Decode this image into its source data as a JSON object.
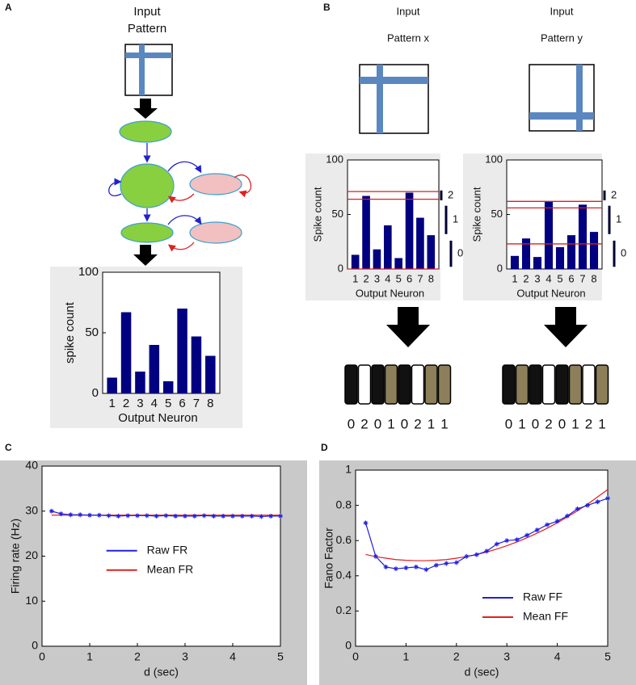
{
  "panels": [
    "A",
    "B",
    "C",
    "D"
  ],
  "diagram": {
    "a_input": [
      "Input",
      "Pattern"
    ],
    "x_input": [
      "Input",
      "Pattern x"
    ],
    "y_input": [
      "Input",
      "Pattern y"
    ],
    "code_x": [
      0,
      2,
      0,
      1,
      0,
      2,
      1,
      1
    ],
    "code_y": [
      0,
      1,
      0,
      2,
      0,
      1,
      2,
      1
    ],
    "code_colors": [
      "#111111",
      "#8c7f5a",
      "#ffffff"
    ]
  },
  "chart_data": [
    {
      "type": "bar",
      "y_label": "spike count",
      "x_label": "Output Neuron",
      "categories": [
        "1",
        "2",
        "3",
        "4",
        "5",
        "6",
        "7",
        "8"
      ],
      "values": [
        13,
        67,
        18,
        40,
        10,
        70,
        47,
        31
      ],
      "color": "#000080",
      "ylim": [
        0,
        100
      ],
      "yticks": [
        0,
        50,
        100
      ]
    },
    {
      "type": "bar",
      "y_label": "Spike count",
      "x_label": "Output Neuron",
      "categories": [
        "1",
        "2",
        "3",
        "4",
        "5",
        "6",
        "7",
        "8"
      ],
      "values": [
        13,
        67,
        18,
        40,
        10,
        70,
        47,
        31
      ],
      "color": "#000080",
      "ylim": [
        0,
        100
      ],
      "yticks": [
        0,
        50,
        100
      ],
      "thresholds": [
        0,
        64,
        71
      ],
      "threshold_color": "#d62020",
      "levels": [
        2,
        1,
        0
      ]
    },
    {
      "type": "bar",
      "y_label": "Spike count",
      "x_label": "Output Neuron",
      "categories": [
        "1",
        "2",
        "3",
        "4",
        "5",
        "6",
        "7",
        "8"
      ],
      "values": [
        12,
        28,
        11,
        62,
        20,
        31,
        59,
        34
      ],
      "color": "#000080",
      "ylim": [
        0,
        100
      ],
      "yticks": [
        0,
        50,
        100
      ],
      "thresholds": [
        23,
        56,
        62
      ],
      "threshold_color": "#d62020",
      "levels": [
        2,
        1,
        0
      ]
    },
    {
      "type": "line",
      "y_label": "Firing rate (Hz)",
      "x_label": "d (sec)",
      "x": [
        0.2,
        0.4,
        0.6,
        0.8,
        1.0,
        1.2,
        1.4,
        1.6,
        1.8,
        2.0,
        2.2,
        2.4,
        2.6,
        2.8,
        3.0,
        3.2,
        3.4,
        3.6,
        3.8,
        4.0,
        4.2,
        4.4,
        4.6,
        4.8,
        5.0
      ],
      "series": [
        {
          "name": "Raw FR",
          "color": "#2020e0",
          "markers": true,
          "values": [
            30.0,
            29.4,
            29.2,
            29.2,
            29.1,
            29.1,
            29.0,
            28.9,
            29.0,
            29.0,
            29.0,
            28.9,
            29.0,
            28.9,
            28.9,
            28.9,
            29.0,
            28.9,
            28.9,
            28.9,
            28.9,
            28.9,
            28.8,
            28.9,
            28.9
          ]
        },
        {
          "name": "Mean FR",
          "color": "#e02020",
          "markers": false,
          "values": [
            29.1,
            29.1,
            29.1,
            29.1,
            29.1,
            29.1,
            29.1,
            29.1,
            29.1,
            29.1,
            29.1,
            29.1,
            29.1,
            29.1,
            29.1,
            29.1,
            29.1,
            29.1,
            29.1,
            29.1,
            29.1,
            29.1,
            29.1,
            29.1,
            29.1
          ]
        }
      ],
      "xlim": [
        0,
        5
      ],
      "xticks": [
        0,
        1,
        2,
        3,
        4,
        5
      ],
      "ylim": [
        0,
        40
      ],
      "yticks": [
        0,
        10,
        20,
        30,
        40
      ],
      "legend": "center"
    },
    {
      "type": "line",
      "y_label": "Fano Factor",
      "x_label": "d (sec)",
      "x": [
        0.2,
        0.4,
        0.6,
        0.8,
        1.0,
        1.2,
        1.4,
        1.6,
        1.8,
        2.0,
        2.2,
        2.4,
        2.6,
        2.8,
        3.0,
        3.2,
        3.4,
        3.6,
        3.8,
        4.0,
        4.2,
        4.4,
        4.6,
        4.8,
        5.0
      ],
      "series": [
        {
          "name": "Raw FF",
          "color": "#2020e0",
          "markers": true,
          "values": [
            0.7,
            0.51,
            0.45,
            0.44,
            0.445,
            0.45,
            0.435,
            0.46,
            0.47,
            0.475,
            0.51,
            0.52,
            0.54,
            0.58,
            0.6,
            0.605,
            0.63,
            0.66,
            0.69,
            0.71,
            0.74,
            0.78,
            0.8,
            0.82,
            0.84
          ]
        },
        {
          "name": "Mean FF",
          "color": "#e02020",
          "markers": false,
          "values": [
            0.521,
            0.509,
            0.5,
            0.492,
            0.488,
            0.486,
            0.486,
            0.488,
            0.492,
            0.5,
            0.509,
            0.521,
            0.535,
            0.552,
            0.571,
            0.592,
            0.616,
            0.642,
            0.67,
            0.701,
            0.734,
            0.769,
            0.807,
            0.848,
            0.89
          ]
        }
      ],
      "xlim": [
        0,
        5
      ],
      "xticks": [
        0,
        1,
        2,
        3,
        4,
        5
      ],
      "ylim": [
        0,
        1
      ],
      "yticks": [
        0,
        0.2,
        0.4,
        0.6,
        0.8,
        1
      ],
      "legend": "lower right"
    }
  ]
}
